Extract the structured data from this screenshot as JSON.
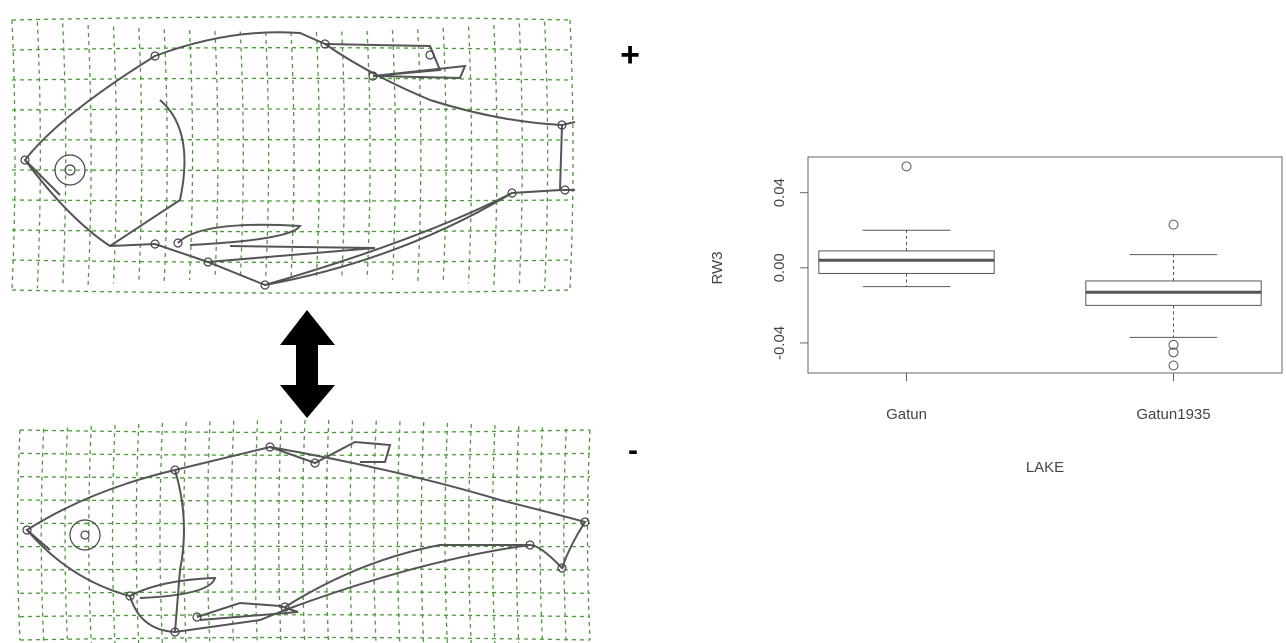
{
  "signs": {
    "plus": "+",
    "minus": "-"
  },
  "chart_data": {
    "type": "box",
    "xlabel": "LAKE",
    "ylabel": "RW3",
    "categories": [
      "Gatun",
      "Gatun1935"
    ],
    "boxes": [
      {
        "whisker_low": -0.01,
        "q1": -0.003,
        "median": 0.004,
        "q3": 0.009,
        "whisker_high": 0.02,
        "outliers": [
          0.054
        ]
      },
      {
        "whisker_low": -0.037,
        "q1": -0.02,
        "median": -0.013,
        "q3": -0.007,
        "whisker_high": 0.007,
        "outliers": [
          0.023,
          -0.041,
          -0.045,
          -0.052
        ]
      }
    ],
    "color": "#555555",
    "ylim": [
      -0.056,
      0.059
    ],
    "yticks": [
      -0.04,
      {
        "value": 0,
        "label": "0.00"
      },
      0.04
    ]
  }
}
